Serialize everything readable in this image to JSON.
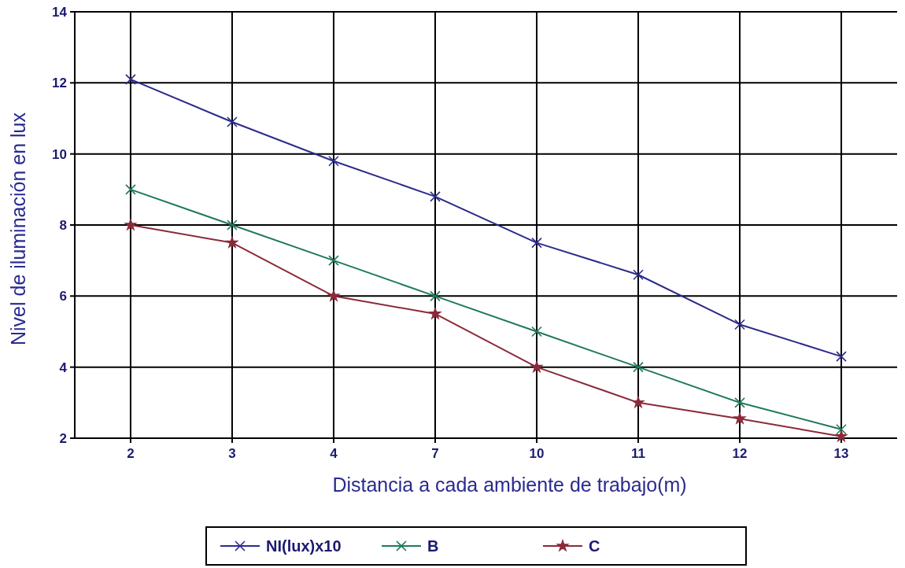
{
  "chart_data": {
    "type": "line",
    "xlabel": "Distancia a cada ambiente de trabajo(m)",
    "ylabel": "Nivel de iluminación en lux",
    "categories": [
      "2",
      "3",
      "4",
      "7",
      "10",
      "11",
      "12",
      "13"
    ],
    "series": [
      {
        "name": "NI(lux)x10",
        "color": "#2b2b8c",
        "marker": "cross",
        "values": [
          12.1,
          10.9,
          9.8,
          8.8,
          7.5,
          6.6,
          5.2,
          4.3
        ]
      },
      {
        "name": "B",
        "color": "#1f7a5a",
        "marker": "cross",
        "values": [
          9,
          8,
          7,
          6,
          5,
          4,
          3,
          2.25
        ]
      },
      {
        "name": "C",
        "color": "#8b2a3a",
        "marker": "star",
        "values": [
          8,
          7.5,
          6,
          5.5,
          4,
          3,
          2.55,
          2.05
        ]
      }
    ],
    "ylim": [
      2,
      14
    ],
    "yticks": [
      2,
      4,
      6,
      8,
      10,
      12,
      14
    ],
    "grid": true,
    "legend": "bottom",
    "line_style": "solid"
  }
}
